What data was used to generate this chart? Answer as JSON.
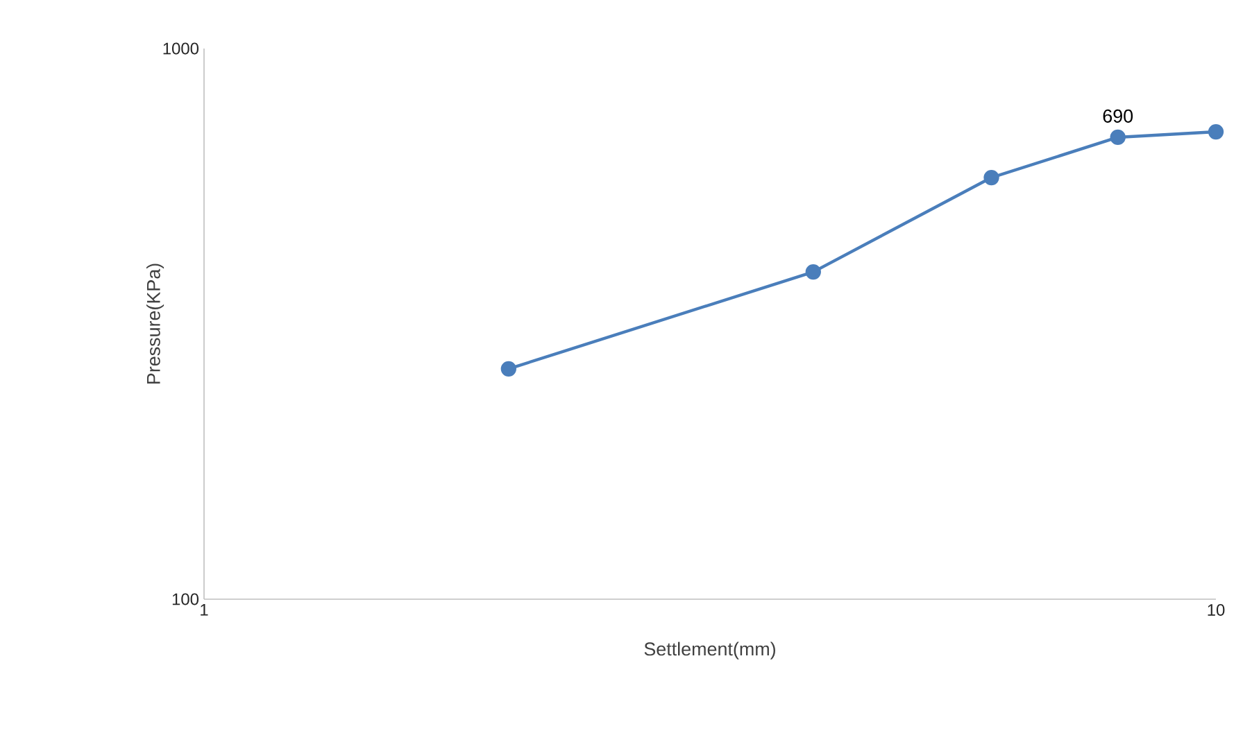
{
  "chart_data": {
    "type": "line",
    "xlabel": "Settlement(mm)",
    "ylabel": "Pressure(KPa)",
    "x": [
      2,
      4,
      6,
      8,
      10
    ],
    "series": [
      {
        "color": "#4a7ebb",
        "values": [
          262,
          393,
          583,
          690,
          706
        ],
        "value_labels": [
          null,
          null,
          null,
          "690",
          null
        ]
      }
    ],
    "log": "xy",
    "xlim": [
      1,
      10
    ],
    "ylim": [
      100,
      1000
    ],
    "xticks": [
      1,
      10
    ],
    "yticks": [
      100,
      1000
    ],
    "marker": "circle",
    "line_style": "solid",
    "grid": false,
    "legend": false
  }
}
